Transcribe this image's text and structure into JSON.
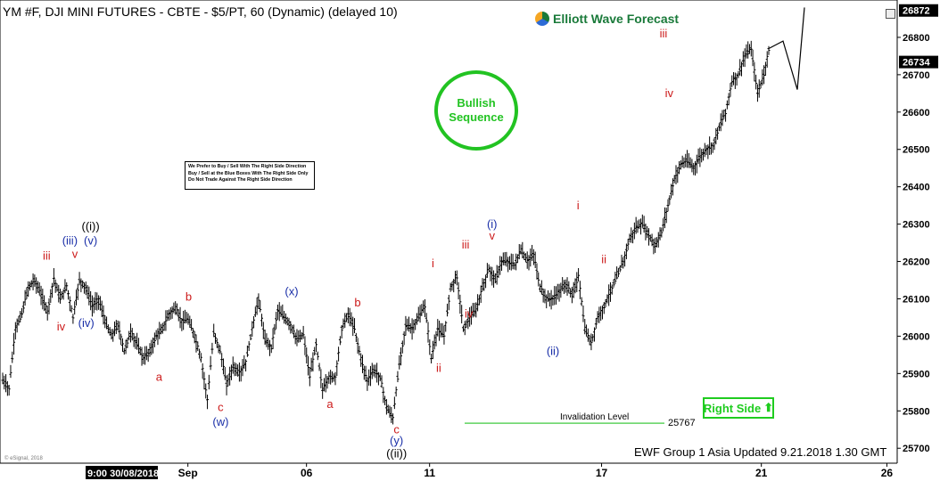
{
  "title": "YM #F, DJI MINI FUTURES - CBTE - $5/PT, 60 (Dynamic) (delayed 10)",
  "logo_text": "Elliott Wave Forecast",
  "note_lines": [
    "We Prefer to Buy / Sell With The Right Side Direction",
    "Buy / Sell at the Blue Boxes With The Right Side Only",
    "Do Not Trade Against The Right Side Direction"
  ],
  "bullish_line1": "Bullish",
  "bullish_line2": "Sequence",
  "right_side": "Right Side",
  "footer": "EWF Group 1 Asia Updated 9.21.2018 1.30 GMT",
  "copyright": "© eSignal, 2018",
  "invalidation_label": "Invalidation Level",
  "invalidation_value": "25767",
  "colors": {
    "red": "#cc1a1a",
    "blue": "#1a2fa8",
    "black": "#000000",
    "green": "#22c322",
    "line_green": "#5fd35f"
  },
  "chart_data": {
    "type": "line",
    "ylim": [
      25660,
      26900
    ],
    "yticks": [
      25700,
      25800,
      25900,
      26000,
      26100,
      26200,
      26300,
      26400,
      26500,
      26600,
      26700,
      26800
    ],
    "xticks": [
      "Sep",
      "06",
      "11",
      "17",
      "21",
      "26"
    ],
    "x_start_label": "9:00 30/08/2018",
    "last_price": 26872,
    "current_price": 26734,
    "invalidation_level": 25767,
    "price_path": [
      25882,
      25860,
      26020,
      26060,
      26130,
      26150,
      26110,
      26065,
      26155,
      26100,
      26135,
      26050,
      26150,
      26130,
      26080,
      26100,
      26040,
      26000,
      26030,
      25960,
      26010,
      25980,
      25940,
      25960,
      26000,
      26020,
      26060,
      26075,
      26040,
      26045,
      26000,
      25940,
      25830,
      26010,
      25960,
      25870,
      25920,
      25900,
      25930,
      26020,
      26100,
      25990,
      25970,
      26070,
      26050,
      26030,
      25990,
      26005,
      25890,
      25980,
      25855,
      25890,
      25890,
      26020,
      26060,
      26020,
      25940,
      25880,
      25910,
      25890,
      25810,
      25780,
      25925,
      26030,
      26020,
      26050,
      26080,
      25940,
      26020,
      26000,
      26130,
      26160,
      26020,
      26050,
      26070,
      26130,
      26180,
      26150,
      26200,
      26200,
      26190,
      26230,
      26200,
      26220,
      26130,
      26100,
      26100,
      26120,
      26140,
      26110,
      26160,
      26020,
      25980,
      26050,
      26080,
      26120,
      26160,
      26200,
      26260,
      26290,
      26300,
      26270,
      26240,
      26280,
      26350,
      26420,
      26460,
      26470,
      26450,
      26480,
      26500,
      26510,
      26560,
      26600,
      26680,
      26700,
      26750,
      26770,
      26650,
      26700,
      26790
    ],
    "wave_labels": [
      {
        "text": "iii",
        "color": "red",
        "x": 0.07,
        "y": 26205
      },
      {
        "text": "v",
        "color": "red",
        "x": 0.115,
        "y": 26210
      },
      {
        "text": "(iii)",
        "color": "blue",
        "x": 0.107,
        "y": 26245
      },
      {
        "text": "((i))",
        "color": "black",
        "x": 0.14,
        "y": 26283
      },
      {
        "text": "(v)",
        "color": "blue",
        "x": 0.14,
        "y": 26245
      },
      {
        "text": "iv",
        "color": "red",
        "x": 0.093,
        "y": 26015
      },
      {
        "text": "(iv)",
        "color": "blue",
        "x": 0.133,
        "y": 26025
      },
      {
        "text": "b",
        "color": "red",
        "x": 0.296,
        "y": 26095
      },
      {
        "text": "a",
        "color": "red",
        "x": 0.249,
        "y": 25880
      },
      {
        "text": "c",
        "color": "red",
        "x": 0.347,
        "y": 25800
      },
      {
        "text": "(w)",
        "color": "blue",
        "x": 0.347,
        "y": 25760
      },
      {
        "text": "(x)",
        "color": "blue",
        "x": 0.46,
        "y": 26110
      },
      {
        "text": "a",
        "color": "red",
        "x": 0.521,
        "y": 25808
      },
      {
        "text": "b",
        "color": "red",
        "x": 0.565,
        "y": 26080
      },
      {
        "text": "c",
        "color": "red",
        "x": 0.627,
        "y": 25740
      },
      {
        "text": "(y)",
        "color": "blue",
        "x": 0.627,
        "y": 25710
      },
      {
        "text": "((ii))",
        "color": "black",
        "x": 0.627,
        "y": 25675
      },
      {
        "text": "i",
        "color": "red",
        "x": 0.685,
        "y": 26185
      },
      {
        "text": "ii",
        "color": "red",
        "x": 0.694,
        "y": 25905
      },
      {
        "text": "iii",
        "color": "red",
        "x": 0.737,
        "y": 26235
      },
      {
        "text": "iv",
        "color": "red",
        "x": 0.742,
        "y": 26050
      },
      {
        "text": "(i)",
        "color": "blue",
        "x": 0.779,
        "y": 26290
      },
      {
        "text": "v",
        "color": "red",
        "x": 0.779,
        "y": 26258
      },
      {
        "text": "(ii)",
        "color": "blue",
        "x": 0.876,
        "y": 25950
      },
      {
        "text": "i",
        "color": "red",
        "x": 0.916,
        "y": 26340
      },
      {
        "text": "ii",
        "color": "red",
        "x": 0.957,
        "y": 26195
      },
      {
        "text": "iii",
        "color": "red",
        "x": 1.052,
        "y": 26800
      },
      {
        "text": "iv",
        "color": "red",
        "x": 1.061,
        "y": 26640
      }
    ],
    "projection": [
      [
        26770,
        0
      ],
      [
        26790,
        0.4
      ],
      [
        26660,
        0.8
      ],
      [
        26880,
        1.0
      ]
    ]
  }
}
